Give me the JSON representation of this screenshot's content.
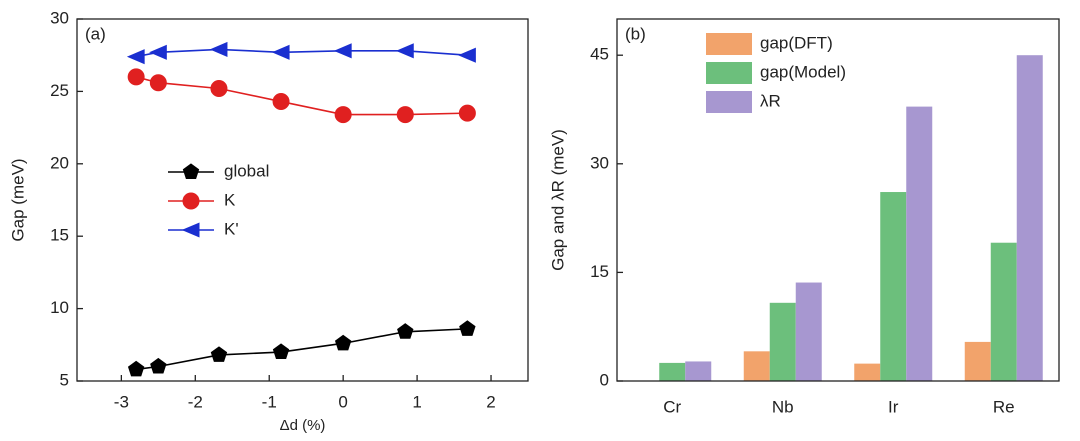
{
  "chart_data": [
    {
      "type": "line",
      "panel_label": "(a)",
      "x_label": "Δd (%)",
      "y_label": "Gap (meV)",
      "xlim": [
        -3.6,
        2.5
      ],
      "xticks": [
        -3,
        -2,
        -1,
        0,
        1,
        2
      ],
      "ylim": [
        5,
        30
      ],
      "yticks": [
        5,
        10,
        15,
        20,
        25,
        30
      ],
      "x": [
        -2.8,
        -2.5,
        -1.68,
        -0.84,
        0,
        0.84,
        1.68
      ],
      "series": [
        {
          "name": "global",
          "color": "#000000",
          "marker": "pentagon",
          "values": [
            5.8,
            6.0,
            6.8,
            7.0,
            7.6,
            8.4,
            8.6
          ]
        },
        {
          "name": "K",
          "color": "#e02020",
          "marker": "circle",
          "values": [
            26.0,
            25.6,
            25.2,
            24.3,
            23.4,
            23.4,
            23.5
          ]
        },
        {
          "name": "K'",
          "color": "#1a2fd0",
          "marker": "triangle-left",
          "values": [
            27.4,
            27.7,
            27.9,
            27.7,
            27.8,
            27.8,
            27.5
          ]
        }
      ]
    },
    {
      "type": "bar",
      "panel_label": "(b)",
      "y_label": "Gap and λR (meV)",
      "ylim": [
        0,
        50
      ],
      "yticks": [
        0,
        15,
        30,
        45
      ],
      "categories": [
        "Cr",
        "Nb",
        "Ir",
        "Re"
      ],
      "series": [
        {
          "name": "gap(DFT)",
          "color": "#f2a36b",
          "values": [
            0,
            4.1,
            2.4,
            5.4
          ]
        },
        {
          "name": "gap(Model)",
          "color": "#6cbf7c",
          "values": [
            2.5,
            10.8,
            26.1,
            19.1
          ]
        },
        {
          "name": "λR",
          "color": "#a797d0",
          "values": [
            2.7,
            13.6,
            37.9,
            45.0
          ]
        }
      ]
    }
  ]
}
